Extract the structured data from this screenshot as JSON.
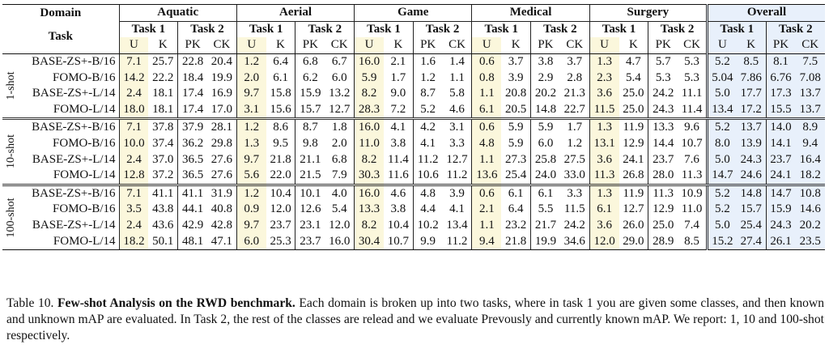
{
  "header": {
    "domain_label": "Domain",
    "task_label": "Task",
    "domains": [
      "Aquatic",
      "Aerial",
      "Game",
      "Medical",
      "Surgery",
      "Overall"
    ],
    "task1": "Task 1",
    "task2": "Task 2",
    "sub": [
      "U",
      "K",
      "PK",
      "CK"
    ]
  },
  "groups": [
    {
      "shot": "1-shot",
      "rows": [
        {
          "name": "BASE-ZS+-B/16",
          "values": [
            "7.1",
            "25.7",
            "22.8",
            "20.4",
            "1.2",
            "6.4",
            "6.8",
            "6.7",
            "16.0",
            "2.1",
            "1.6",
            "1.4",
            "0.6",
            "3.7",
            "3.8",
            "3.7",
            "1.3",
            "4.7",
            "5.7",
            "5.3",
            "5.2",
            "8.5",
            "8.1",
            "7.5"
          ],
          "bold": []
        },
        {
          "name": "FOMO-B/16",
          "values": [
            "14.2",
            "22.2",
            "18.4",
            "19.9",
            "2.0",
            "6.1",
            "6.2",
            "6.0",
            "5.9",
            "1.7",
            "1.2",
            "1.1",
            "0.8",
            "3.9",
            "2.9",
            "2.8",
            "2.3",
            "5.4",
            "5.3",
            "5.3",
            "5.04",
            "7.86",
            "6.76",
            "7.08"
          ],
          "bold": []
        },
        {
          "name": "BASE-ZS+-L/14",
          "values": [
            "2.4",
            "18.1",
            "17.4",
            "16.9",
            "9.7",
            "15.8",
            "15.9",
            "13.2",
            "8.2",
            "9.0",
            "8.7",
            "5.8",
            "1.1",
            "20.8",
            "20.2",
            "21.3",
            "3.6",
            "25.0",
            "24.2",
            "11.1",
            "5.0",
            "17.7",
            "17.3",
            "13.7"
          ],
          "bold": [
            21,
            22,
            23
          ]
        },
        {
          "name": "FOMO-L/14",
          "values": [
            "18.0",
            "18.1",
            "17.4",
            "17.0",
            "3.1",
            "15.6",
            "15.7",
            "12.7",
            "28.3",
            "7.2",
            "5.2",
            "4.6",
            "6.1",
            "20.5",
            "14.8",
            "22.7",
            "11.5",
            "25.0",
            "24.3",
            "11.4",
            "13.4",
            "17.2",
            "15.5",
            "13.7"
          ],
          "bold": [
            20,
            23
          ]
        }
      ]
    },
    {
      "shot": "10-shot",
      "rows": [
        {
          "name": "BASE-ZS+-B/16",
          "values": [
            "7.1",
            "37.8",
            "37.9",
            "28.1",
            "1.2",
            "8.6",
            "8.7",
            "1.8",
            "16.0",
            "4.1",
            "4.2",
            "3.1",
            "0.6",
            "5.9",
            "5.9",
            "1.7",
            "1.3",
            "11.9",
            "13.3",
            "9.6",
            "5.2",
            "13.7",
            "14.0",
            "8.9"
          ],
          "bold": []
        },
        {
          "name": "FOMO-B/16",
          "values": [
            "10.0",
            "37.4",
            "36.2",
            "29.8",
            "1.3",
            "9.5",
            "9.8",
            "2.0",
            "11.0",
            "3.8",
            "4.1",
            "3.3",
            "4.8",
            "5.9",
            "6.0",
            "1.2",
            "13.1",
            "12.9",
            "14.4",
            "10.7",
            "8.0",
            "13.9",
            "14.1",
            "9.4"
          ],
          "bold": []
        },
        {
          "name": "BASE-ZS+-L/14",
          "values": [
            "2.4",
            "37.0",
            "36.5",
            "27.6",
            "9.7",
            "21.8",
            "21.1",
            "6.8",
            "8.2",
            "11.4",
            "11.2",
            "12.7",
            "1.1",
            "27.3",
            "25.8",
            "27.5",
            "3.6",
            "24.1",
            "23.7",
            "7.6",
            "5.0",
            "24.3",
            "23.7",
            "16.4"
          ],
          "bold": []
        },
        {
          "name": "FOMO-L/14",
          "values": [
            "12.8",
            "37.2",
            "36.5",
            "27.6",
            "5.6",
            "22.0",
            "21.5",
            "7.9",
            "30.3",
            "11.6",
            "10.6",
            "11.2",
            "13.6",
            "25.4",
            "24.0",
            "33.0",
            "11.3",
            "26.8",
            "28.0",
            "11.3",
            "14.7",
            "24.6",
            "24.1",
            "18.2"
          ],
          "bold": [
            20,
            21,
            22,
            23
          ]
        }
      ]
    },
    {
      "shot": "100-shot",
      "rows": [
        {
          "name": "BASE-ZS+-B/16",
          "values": [
            "7.1",
            "41.1",
            "41.1",
            "31.9",
            "1.2",
            "10.4",
            "10.1",
            "4.0",
            "16.0",
            "4.6",
            "4.8",
            "3.9",
            "0.6",
            "6.1",
            "6.1",
            "3.3",
            "1.3",
            "11.9",
            "11.3",
            "10.9",
            "5.2",
            "14.8",
            "14.7",
            "10.8"
          ],
          "bold": []
        },
        {
          "name": "FOMO-B/16",
          "values": [
            "3.5",
            "43.8",
            "44.1",
            "40.8",
            "0.9",
            "12.0",
            "12.6",
            "5.4",
            "13.3",
            "3.8",
            "4.4",
            "4.1",
            "2.1",
            "6.4",
            "5.5",
            "11.5",
            "6.1",
            "12.7",
            "12.9",
            "11.0",
            "5.2",
            "15.7",
            "15.9",
            "14.6"
          ],
          "bold": []
        },
        {
          "name": "BASE-ZS+-L/14",
          "values": [
            "2.4",
            "43.6",
            "42.9",
            "42.8",
            "9.7",
            "23.7",
            "23.1",
            "12.0",
            "8.2",
            "10.4",
            "10.2",
            "13.4",
            "1.1",
            "23.2",
            "21.7",
            "24.2",
            "3.6",
            "26.0",
            "25.0",
            "7.4",
            "5.0",
            "25.4",
            "24.3",
            "20.2"
          ],
          "bold": []
        },
        {
          "name": "FOMO-L/14",
          "values": [
            "18.2",
            "50.1",
            "48.1",
            "47.1",
            "6.0",
            "25.3",
            "23.7",
            "16.0",
            "30.4",
            "10.7",
            "9.9",
            "11.2",
            "9.4",
            "21.8",
            "19.9",
            "34.6",
            "12.0",
            "29.0",
            "28.9",
            "8.5",
            "15.2",
            "27.4",
            "26.1",
            "23.5"
          ],
          "bold": [
            20,
            21,
            22,
            23
          ]
        }
      ]
    }
  ],
  "caption": {
    "label": "Table 10.",
    "title": "Few-shot Analysis on the RWD benchmark.",
    "text": "Each domain is broken up into two tasks, where in task 1 you are given some classes, and then known and unknown mAP are evaluated. In Task 2, the rest of the classes are relead and we evaluate Prevously and currently known mAP. We report: 1, 10 and 100-shot respectively."
  }
}
